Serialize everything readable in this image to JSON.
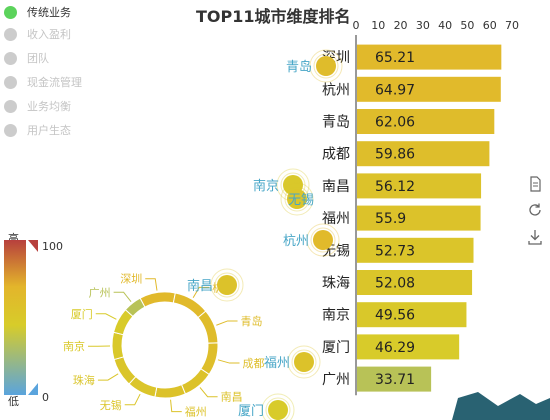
{
  "legend": {
    "items": [
      {
        "label": "传统业务",
        "active": true
      },
      {
        "label": "收入盈利",
        "active": false
      },
      {
        "label": "团队",
        "active": false
      },
      {
        "label": "现金流管理",
        "active": false
      },
      {
        "label": "业务均衡",
        "active": false
      },
      {
        "label": "用户生态",
        "active": false
      }
    ]
  },
  "toolbox": {
    "icons": [
      "data-view-icon",
      "restore-icon",
      "save-image-icon"
    ]
  },
  "visual_map": {
    "high_text": "高",
    "low_text": "低",
    "max_label": "100",
    "min_label": "0",
    "colors": [
      "#5aa4dd",
      "#d7cc2a",
      "#e3b52b",
      "#b7403d"
    ]
  },
  "chart_data": [
    {
      "type": "bar",
      "title": "TOP11城市维度排名",
      "categories": [
        "深圳",
        "杭州",
        "青岛",
        "成都",
        "南昌",
        "福州",
        "无锡",
        "珠海",
        "南京",
        "厦门",
        "广州"
      ],
      "values": [
        65.21,
        64.97,
        62.06,
        59.86,
        56.12,
        55.9,
        52.73,
        52.08,
        49.56,
        46.29,
        33.71
      ],
      "xlim": [
        0,
        70
      ],
      "xticks": [
        "0",
        "10",
        "20",
        "30",
        "40",
        "50",
        "60",
        "70"
      ],
      "orientation": "horizontal",
      "axis_position": "top"
    },
    {
      "type": "pie",
      "subtype": "donut",
      "labels": [
        "深圳",
        "杭州",
        "青岛",
        "成都",
        "南昌",
        "福州",
        "无锡",
        "珠海",
        "南京",
        "厦门",
        "广州"
      ],
      "values": [
        65.21,
        64.97,
        62.06,
        59.86,
        56.12,
        55.9,
        52.73,
        52.08,
        49.56,
        46.29,
        33.71
      ]
    },
    {
      "type": "scatter",
      "subtype": "effect-scatter-map",
      "points": [
        {
          "label": "青岛",
          "value": 62.06
        },
        {
          "label": "南京",
          "value": 49.56
        },
        {
          "label": "无锡",
          "value": 52.73
        },
        {
          "label": "杭州",
          "value": 64.97
        },
        {
          "label": "南昌",
          "value": 56.12
        },
        {
          "label": "福州",
          "value": 55.9
        },
        {
          "label": "厦门",
          "value": 46.29
        }
      ]
    }
  ]
}
